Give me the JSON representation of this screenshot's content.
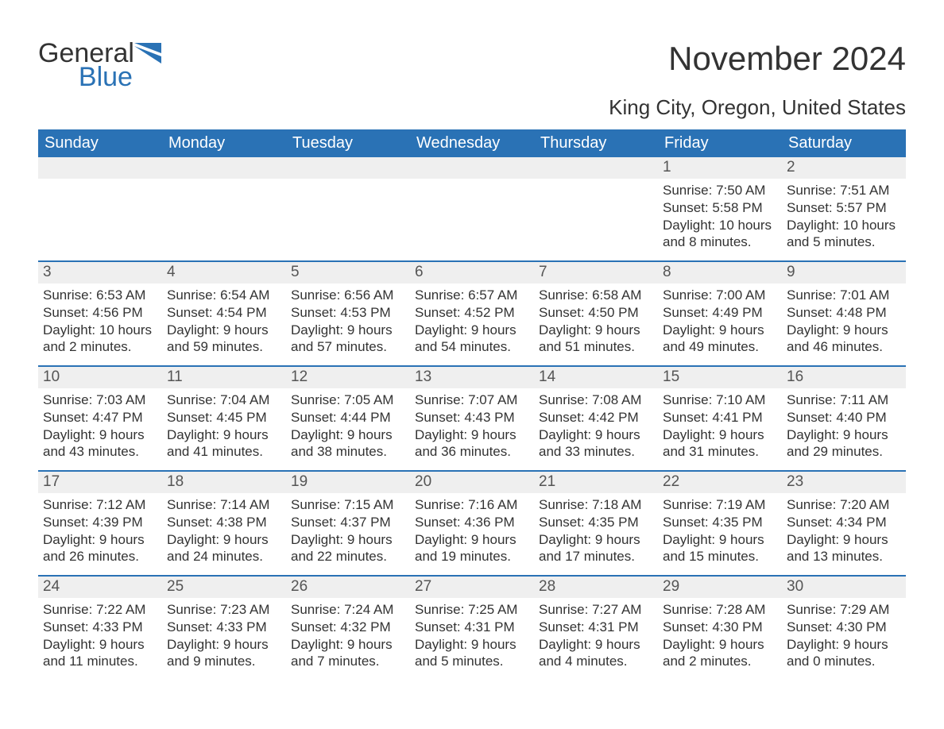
{
  "logo": {
    "word1": "General",
    "word2": "Blue",
    "shape_color": "#2a72b5"
  },
  "title": "November 2024",
  "subtitle": "King City, Oregon, United States",
  "dow_header_bg": "#2a72b5",
  "dow_header_color": "#ffffff",
  "daynum_bg": "#efefef",
  "daynum_border_color": "#2a72b5",
  "text_color": "#333333",
  "columns": [
    "Sunday",
    "Monday",
    "Tuesday",
    "Wednesday",
    "Thursday",
    "Friday",
    "Saturday"
  ],
  "cells": [
    {
      "blank": true
    },
    {
      "blank": true
    },
    {
      "blank": true
    },
    {
      "blank": true
    },
    {
      "blank": true
    },
    {
      "day": "1",
      "sunrise": "Sunrise: 7:50 AM",
      "sunset": "Sunset: 5:58 PM",
      "daylight1": "Daylight: 10 hours",
      "daylight2": "and 8 minutes."
    },
    {
      "day": "2",
      "sunrise": "Sunrise: 7:51 AM",
      "sunset": "Sunset: 5:57 PM",
      "daylight1": "Daylight: 10 hours",
      "daylight2": "and 5 minutes."
    },
    {
      "day": "3",
      "sunrise": "Sunrise: 6:53 AM",
      "sunset": "Sunset: 4:56 PM",
      "daylight1": "Daylight: 10 hours",
      "daylight2": "and 2 minutes."
    },
    {
      "day": "4",
      "sunrise": "Sunrise: 6:54 AM",
      "sunset": "Sunset: 4:54 PM",
      "daylight1": "Daylight: 9 hours",
      "daylight2": "and 59 minutes."
    },
    {
      "day": "5",
      "sunrise": "Sunrise: 6:56 AM",
      "sunset": "Sunset: 4:53 PM",
      "daylight1": "Daylight: 9 hours",
      "daylight2": "and 57 minutes."
    },
    {
      "day": "6",
      "sunrise": "Sunrise: 6:57 AM",
      "sunset": "Sunset: 4:52 PM",
      "daylight1": "Daylight: 9 hours",
      "daylight2": "and 54 minutes."
    },
    {
      "day": "7",
      "sunrise": "Sunrise: 6:58 AM",
      "sunset": "Sunset: 4:50 PM",
      "daylight1": "Daylight: 9 hours",
      "daylight2": "and 51 minutes."
    },
    {
      "day": "8",
      "sunrise": "Sunrise: 7:00 AM",
      "sunset": "Sunset: 4:49 PM",
      "daylight1": "Daylight: 9 hours",
      "daylight2": "and 49 minutes."
    },
    {
      "day": "9",
      "sunrise": "Sunrise: 7:01 AM",
      "sunset": "Sunset: 4:48 PM",
      "daylight1": "Daylight: 9 hours",
      "daylight2": "and 46 minutes."
    },
    {
      "day": "10",
      "sunrise": "Sunrise: 7:03 AM",
      "sunset": "Sunset: 4:47 PM",
      "daylight1": "Daylight: 9 hours",
      "daylight2": "and 43 minutes."
    },
    {
      "day": "11",
      "sunrise": "Sunrise: 7:04 AM",
      "sunset": "Sunset: 4:45 PM",
      "daylight1": "Daylight: 9 hours",
      "daylight2": "and 41 minutes."
    },
    {
      "day": "12",
      "sunrise": "Sunrise: 7:05 AM",
      "sunset": "Sunset: 4:44 PM",
      "daylight1": "Daylight: 9 hours",
      "daylight2": "and 38 minutes."
    },
    {
      "day": "13",
      "sunrise": "Sunrise: 7:07 AM",
      "sunset": "Sunset: 4:43 PM",
      "daylight1": "Daylight: 9 hours",
      "daylight2": "and 36 minutes."
    },
    {
      "day": "14",
      "sunrise": "Sunrise: 7:08 AM",
      "sunset": "Sunset: 4:42 PM",
      "daylight1": "Daylight: 9 hours",
      "daylight2": "and 33 minutes."
    },
    {
      "day": "15",
      "sunrise": "Sunrise: 7:10 AM",
      "sunset": "Sunset: 4:41 PM",
      "daylight1": "Daylight: 9 hours",
      "daylight2": "and 31 minutes."
    },
    {
      "day": "16",
      "sunrise": "Sunrise: 7:11 AM",
      "sunset": "Sunset: 4:40 PM",
      "daylight1": "Daylight: 9 hours",
      "daylight2": "and 29 minutes."
    },
    {
      "day": "17",
      "sunrise": "Sunrise: 7:12 AM",
      "sunset": "Sunset: 4:39 PM",
      "daylight1": "Daylight: 9 hours",
      "daylight2": "and 26 minutes."
    },
    {
      "day": "18",
      "sunrise": "Sunrise: 7:14 AM",
      "sunset": "Sunset: 4:38 PM",
      "daylight1": "Daylight: 9 hours",
      "daylight2": "and 24 minutes."
    },
    {
      "day": "19",
      "sunrise": "Sunrise: 7:15 AM",
      "sunset": "Sunset: 4:37 PM",
      "daylight1": "Daylight: 9 hours",
      "daylight2": "and 22 minutes."
    },
    {
      "day": "20",
      "sunrise": "Sunrise: 7:16 AM",
      "sunset": "Sunset: 4:36 PM",
      "daylight1": "Daylight: 9 hours",
      "daylight2": "and 19 minutes."
    },
    {
      "day": "21",
      "sunrise": "Sunrise: 7:18 AM",
      "sunset": "Sunset: 4:35 PM",
      "daylight1": "Daylight: 9 hours",
      "daylight2": "and 17 minutes."
    },
    {
      "day": "22",
      "sunrise": "Sunrise: 7:19 AM",
      "sunset": "Sunset: 4:35 PM",
      "daylight1": "Daylight: 9 hours",
      "daylight2": "and 15 minutes."
    },
    {
      "day": "23",
      "sunrise": "Sunrise: 7:20 AM",
      "sunset": "Sunset: 4:34 PM",
      "daylight1": "Daylight: 9 hours",
      "daylight2": "and 13 minutes."
    },
    {
      "day": "24",
      "sunrise": "Sunrise: 7:22 AM",
      "sunset": "Sunset: 4:33 PM",
      "daylight1": "Daylight: 9 hours",
      "daylight2": "and 11 minutes."
    },
    {
      "day": "25",
      "sunrise": "Sunrise: 7:23 AM",
      "sunset": "Sunset: 4:33 PM",
      "daylight1": "Daylight: 9 hours",
      "daylight2": "and 9 minutes."
    },
    {
      "day": "26",
      "sunrise": "Sunrise: 7:24 AM",
      "sunset": "Sunset: 4:32 PM",
      "daylight1": "Daylight: 9 hours",
      "daylight2": "and 7 minutes."
    },
    {
      "day": "27",
      "sunrise": "Sunrise: 7:25 AM",
      "sunset": "Sunset: 4:31 PM",
      "daylight1": "Daylight: 9 hours",
      "daylight2": "and 5 minutes."
    },
    {
      "day": "28",
      "sunrise": "Sunrise: 7:27 AM",
      "sunset": "Sunset: 4:31 PM",
      "daylight1": "Daylight: 9 hours",
      "daylight2": "and 4 minutes."
    },
    {
      "day": "29",
      "sunrise": "Sunrise: 7:28 AM",
      "sunset": "Sunset: 4:30 PM",
      "daylight1": "Daylight: 9 hours",
      "daylight2": "and 2 minutes."
    },
    {
      "day": "30",
      "sunrise": "Sunrise: 7:29 AM",
      "sunset": "Sunset: 4:30 PM",
      "daylight1": "Daylight: 9 hours",
      "daylight2": "and 0 minutes."
    }
  ]
}
